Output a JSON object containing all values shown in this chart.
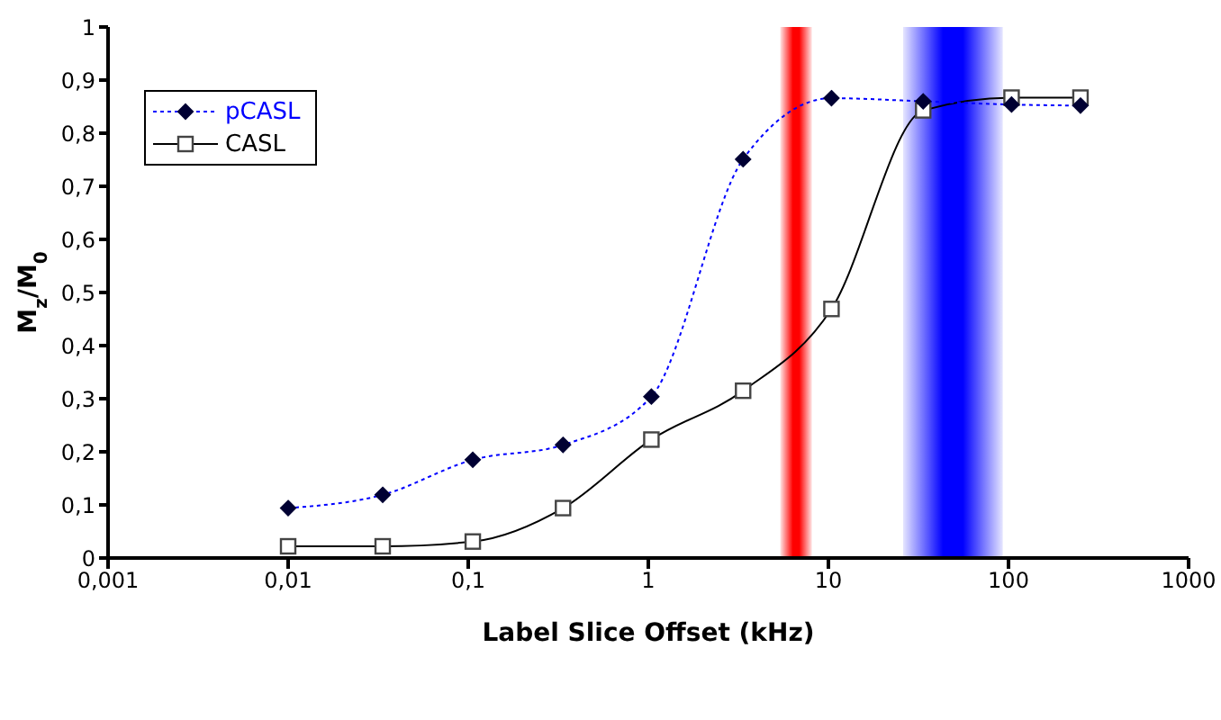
{
  "chart_data": {
    "type": "line",
    "xlabel": "Label Slice Offset (kHz)",
    "ylabel": "M$_{z}$/M$_{0}$",
    "log": "x",
    "xlim": [
      0.001,
      1000
    ],
    "xticks": [
      {
        "value": 0.001,
        "label": "0,001"
      },
      {
        "value": 0.01,
        "label": "0,01"
      },
      {
        "value": 0.1,
        "label": "0,1"
      },
      1,
      10,
      100,
      1000
    ],
    "ylim": [
      0,
      1
    ],
    "yticks": [
      0,
      {
        "value": 0.1,
        "label": "0,1"
      },
      {
        "value": 0.2,
        "label": "0,2"
      },
      {
        "value": 0.3,
        "label": "0,3"
      },
      {
        "value": 0.4,
        "label": "0,4"
      },
      {
        "value": 0.5,
        "label": "0,5"
      },
      {
        "value": 0.6,
        "label": "0,6"
      },
      {
        "value": 0.7,
        "label": "0,7"
      },
      {
        "value": 0.8,
        "label": "0,8"
      },
      {
        "value": 0.9,
        "label": "0,9"
      },
      1
    ],
    "grid": false,
    "legend": "top left",
    "x": [
      0.01,
      0.0335,
      0.106,
      0.336,
      1.04,
      3.36,
      10.4,
      33.6,
      104,
      251
    ],
    "series": [
      {
        "name": "pCASL",
        "color": "#0000ff",
        "marker": "diamond",
        "line_style": "dotted",
        "values": [
          0.094,
          0.119,
          0.185,
          0.213,
          0.304,
          0.751,
          0.866,
          0.86,
          0.854,
          0.852
        ]
      },
      {
        "name": "CASL",
        "color": "#000000",
        "marker": "square",
        "line_style": "solid",
        "values": [
          0.022,
          0.022,
          0.031,
          0.094,
          0.223,
          0.315,
          0.469,
          0.843,
          0.867,
          0.867
        ]
      }
    ],
    "bands": [
      {
        "axis": "x",
        "from": 5.4,
        "to": 8.1,
        "color": "#ff0000"
      },
      {
        "axis": "x",
        "from": 26,
        "to": 93,
        "color": "#0000ff"
      }
    ]
  }
}
